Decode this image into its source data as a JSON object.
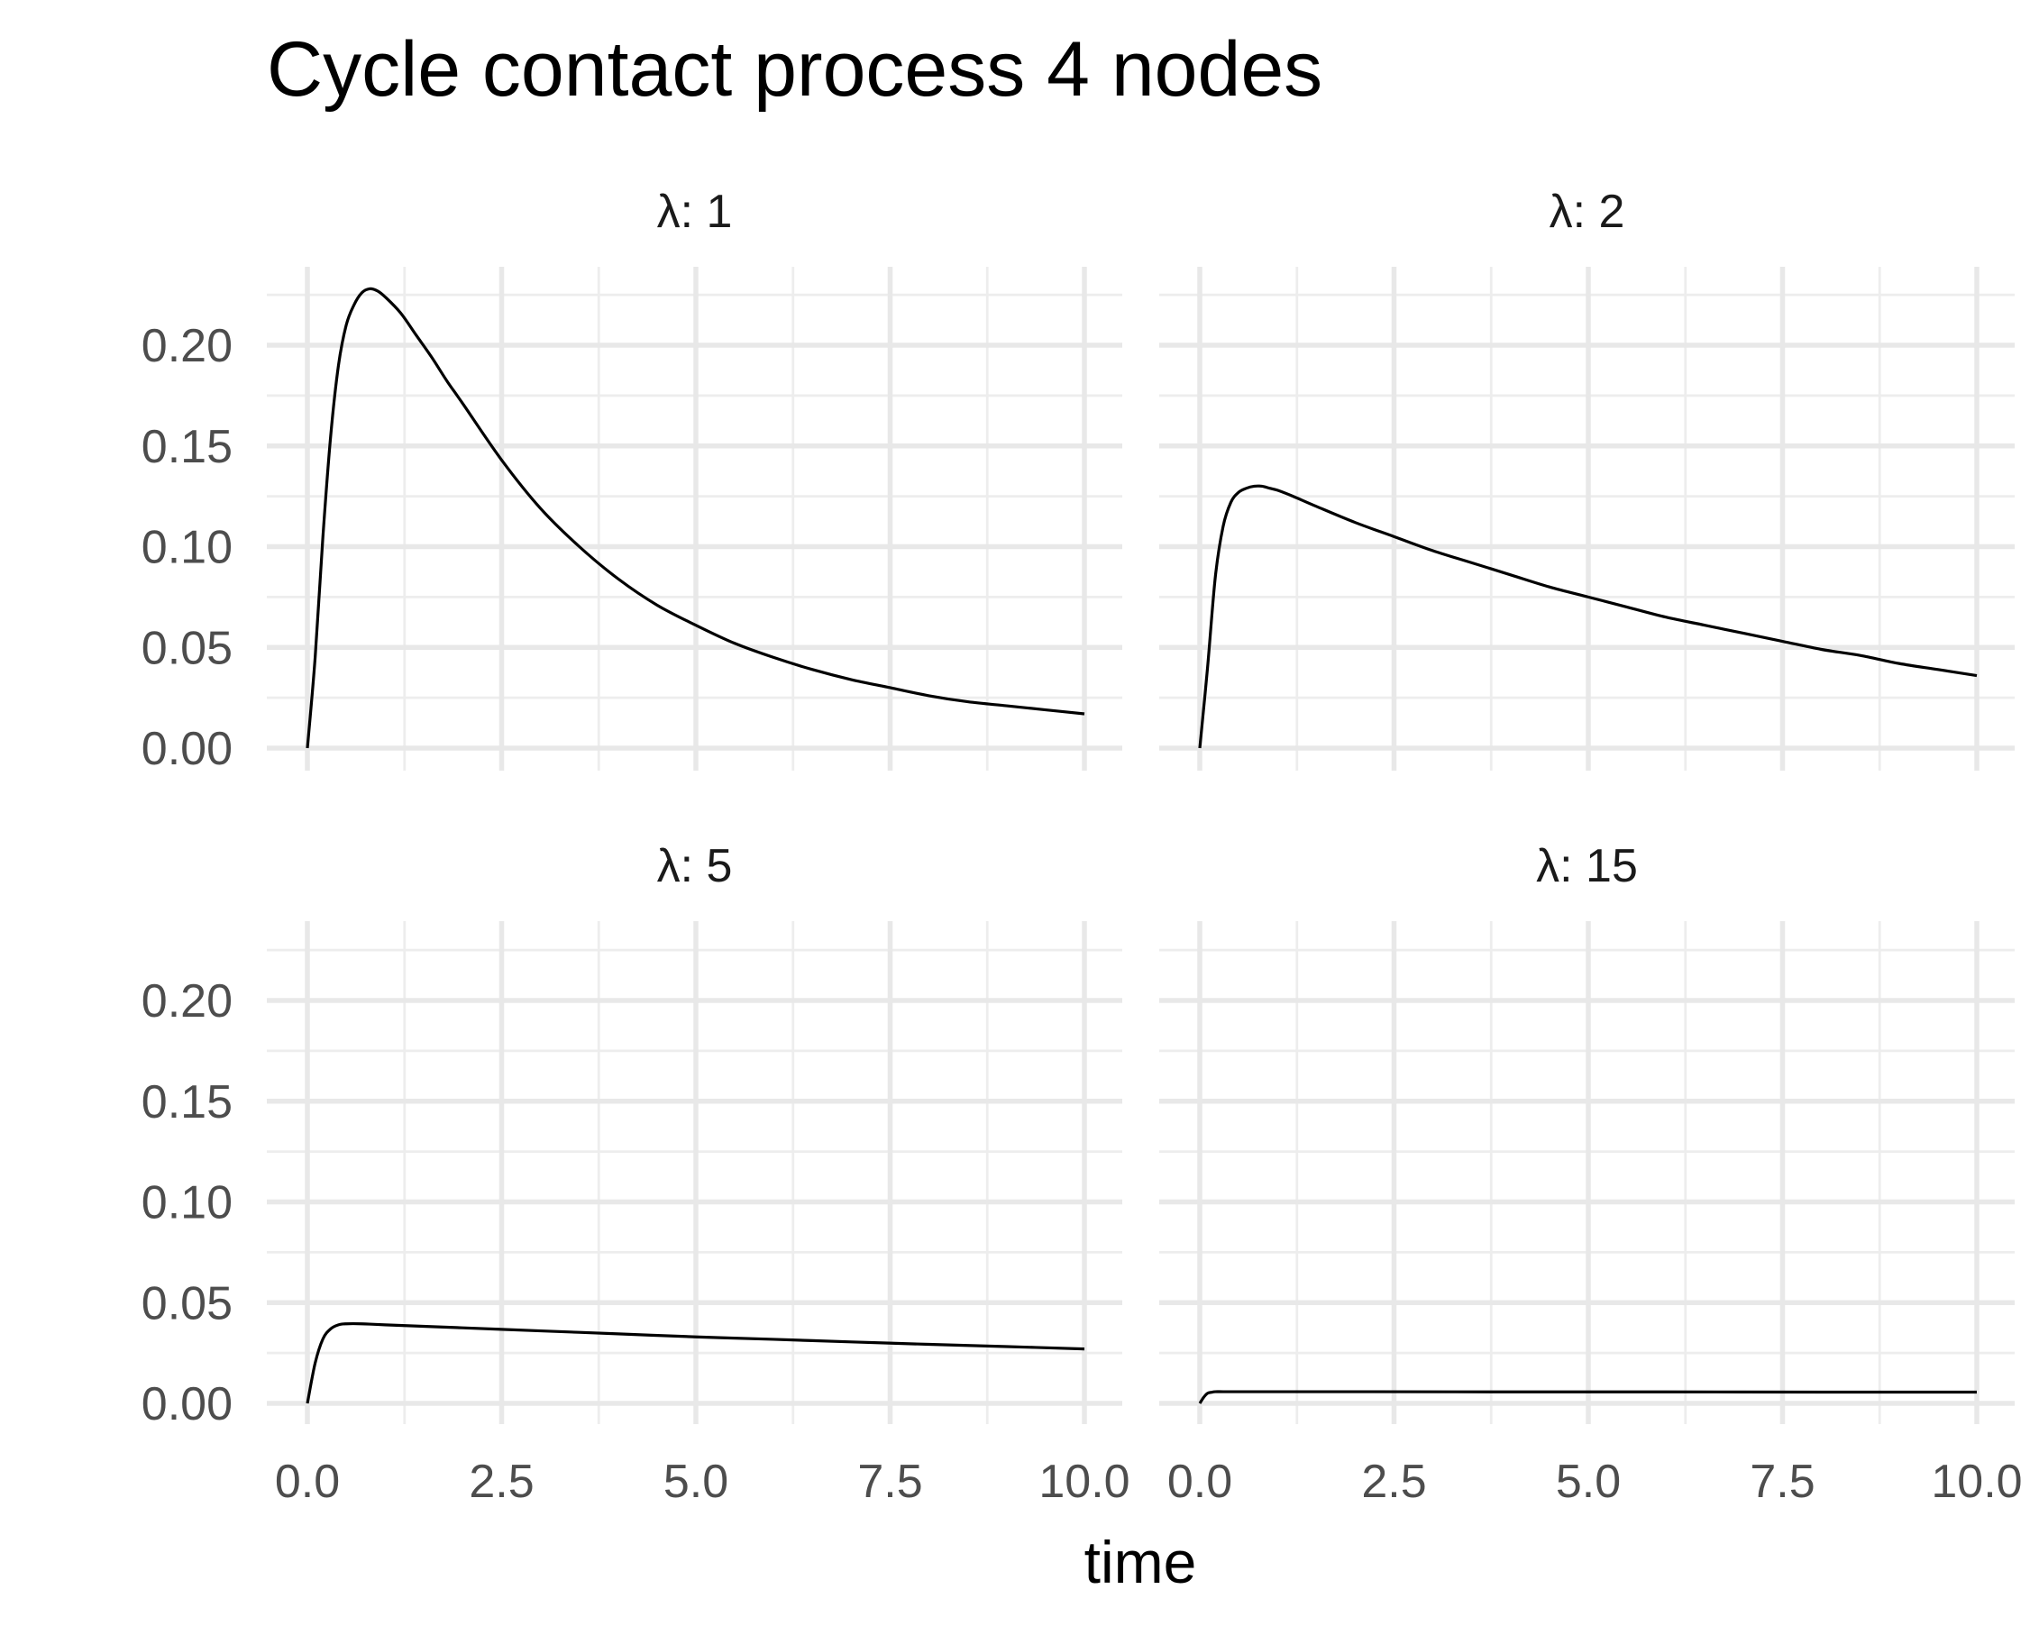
{
  "chart_data": {
    "type": "line",
    "title": "Cycle contact process 4 nodes",
    "xlabel": "time",
    "ylabel": "",
    "xlim": [
      0,
      10
    ],
    "ylim": [
      0,
      0.23
    ],
    "x_ticks": [
      0,
      2.5,
      5,
      7.5,
      10
    ],
    "x_tick_labels": [
      "0.0",
      "2.5",
      "5.0",
      "7.5",
      "10.0"
    ],
    "y_ticks": [
      0,
      0.05,
      0.1,
      0.15,
      0.2
    ],
    "y_tick_labels": [
      "0.00",
      "0.05",
      "0.10",
      "0.15",
      "0.20"
    ],
    "grid": true,
    "facets": [
      {
        "label": "λ: 1",
        "x": [
          0,
          0.1,
          0.2,
          0.3,
          0.4,
          0.5,
          0.6,
          0.7,
          0.8,
          0.9,
          1.0,
          1.2,
          1.4,
          1.6,
          1.8,
          2.0,
          2.5,
          3.0,
          3.5,
          4.0,
          4.5,
          5.0,
          5.5,
          6.0,
          6.5,
          7.0,
          7.5,
          8.0,
          8.5,
          9.0,
          9.5,
          10.0
        ],
        "values": [
          0,
          0.045,
          0.105,
          0.155,
          0.19,
          0.21,
          0.22,
          0.226,
          0.228,
          0.227,
          0.224,
          0.216,
          0.205,
          0.194,
          0.182,
          0.171,
          0.143,
          0.119,
          0.1,
          0.084,
          0.071,
          0.061,
          0.052,
          0.045,
          0.039,
          0.034,
          0.03,
          0.026,
          0.023,
          0.021,
          0.019,
          0.017
        ]
      },
      {
        "label": "λ: 2",
        "x": [
          0,
          0.1,
          0.2,
          0.3,
          0.4,
          0.5,
          0.6,
          0.7,
          0.8,
          0.9,
          1.0,
          1.2,
          1.5,
          2.0,
          2.5,
          3.0,
          3.5,
          4.0,
          4.5,
          5.0,
          5.5,
          6.0,
          6.5,
          7.0,
          7.5,
          8.0,
          8.5,
          9.0,
          9.5,
          10.0
        ],
        "values": [
          0,
          0.04,
          0.085,
          0.11,
          0.122,
          0.127,
          0.129,
          0.13,
          0.13,
          0.129,
          0.128,
          0.125,
          0.12,
          0.112,
          0.105,
          0.098,
          0.092,
          0.086,
          0.08,
          0.075,
          0.07,
          0.065,
          0.061,
          0.057,
          0.053,
          0.049,
          0.046,
          0.042,
          0.039,
          0.036
        ]
      },
      {
        "label": "λ: 5",
        "x": [
          0,
          0.1,
          0.2,
          0.3,
          0.4,
          0.5,
          0.7,
          1.0,
          2.0,
          3.0,
          4.0,
          5.0,
          6.0,
          7.0,
          8.0,
          9.0,
          10.0
        ],
        "values": [
          0,
          0.02,
          0.032,
          0.037,
          0.039,
          0.0395,
          0.0395,
          0.039,
          0.0375,
          0.036,
          0.0345,
          0.033,
          0.0318,
          0.0305,
          0.0293,
          0.0282,
          0.027
        ]
      },
      {
        "label": "λ: 15",
        "x": [
          0,
          0.05,
          0.1,
          0.15,
          0.2,
          0.3,
          0.5,
          1.0,
          2.0,
          4.0,
          6.0,
          8.0,
          10.0
        ],
        "values": [
          0,
          0.003,
          0.005,
          0.0055,
          0.0058,
          0.0058,
          0.0058,
          0.0058,
          0.0058,
          0.0057,
          0.0057,
          0.0056,
          0.0056
        ]
      }
    ]
  }
}
